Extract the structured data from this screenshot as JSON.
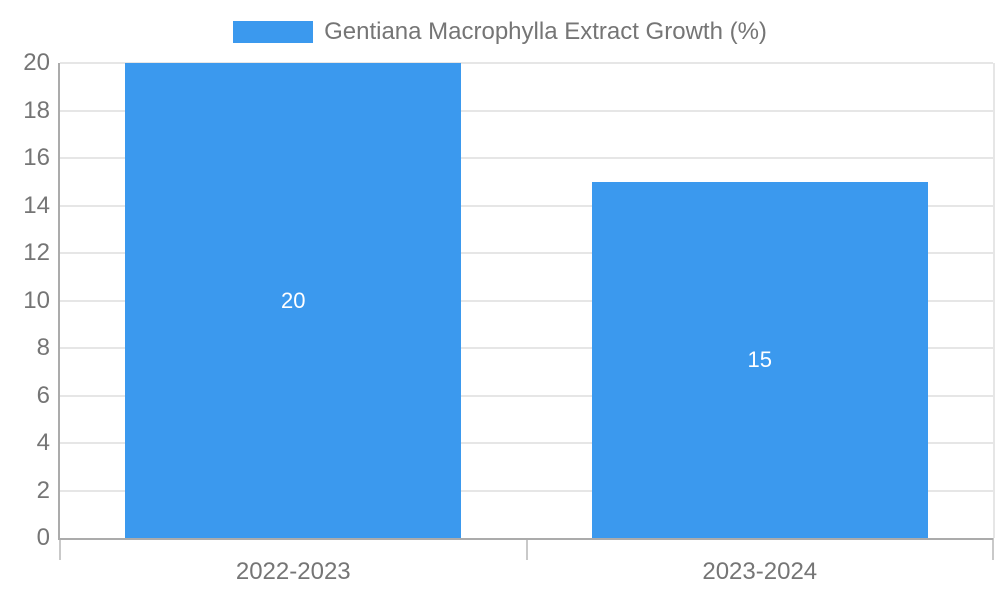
{
  "chart_data": {
    "type": "bar",
    "title": "Gentiana Macrophylla Extract Growth (%)",
    "categories": [
      "2022-2023",
      "2023-2024"
    ],
    "values": [
      20,
      15
    ],
    "value_labels": [
      "20",
      "15"
    ],
    "xlabel": "",
    "ylabel": "",
    "ylim": [
      0,
      20
    ],
    "ytick_step": 2,
    "ytick_labels": [
      "0",
      "2",
      "4",
      "6",
      "8",
      "10",
      "12",
      "14",
      "16",
      "18",
      "20"
    ],
    "grid": true,
    "legend": {
      "label": "Gentiana Macrophylla Extract Growth (%)",
      "position": "top-center"
    },
    "colors": {
      "bar": "#3b99ee",
      "axis_text": "#757575",
      "value_text": "#ffffff",
      "gridline": "#e6e6e6",
      "axis_line": "#ababab",
      "axis_tick": "#c9c9c9"
    }
  }
}
